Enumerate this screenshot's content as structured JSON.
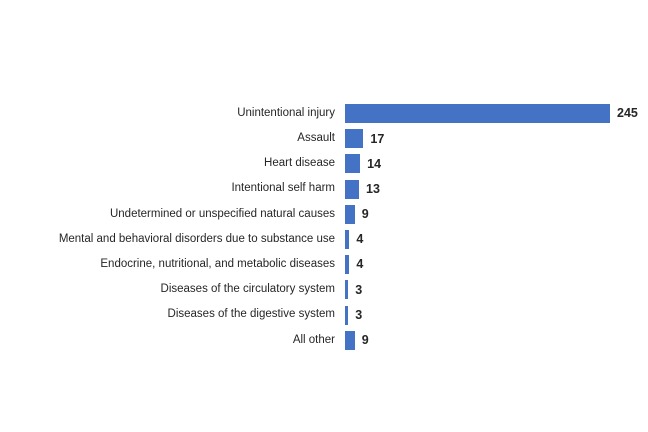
{
  "chart_data": {
    "type": "bar",
    "orientation": "horizontal",
    "categories": [
      "Unintentional injury",
      "Assault",
      "Heart disease",
      "Intentional self harm",
      "Undetermined or unspecified natural causes",
      "Mental and behavioral disorders due to substance use",
      "Endocrine, nutritional, and metabolic diseases",
      "Diseases of the circulatory system",
      "Diseases of the digestive system",
      "All other"
    ],
    "values": [
      245,
      17,
      14,
      13,
      9,
      4,
      4,
      3,
      3,
      9
    ],
    "xlim": [
      0,
      245
    ],
    "data_labels": "outside-end",
    "gridlines": false,
    "axis_lines": false,
    "legend": "none",
    "bar_color": "#4472C4",
    "category_label_color": "#262626",
    "value_label_color": "#262626",
    "background_color": "#FFFFFF"
  }
}
